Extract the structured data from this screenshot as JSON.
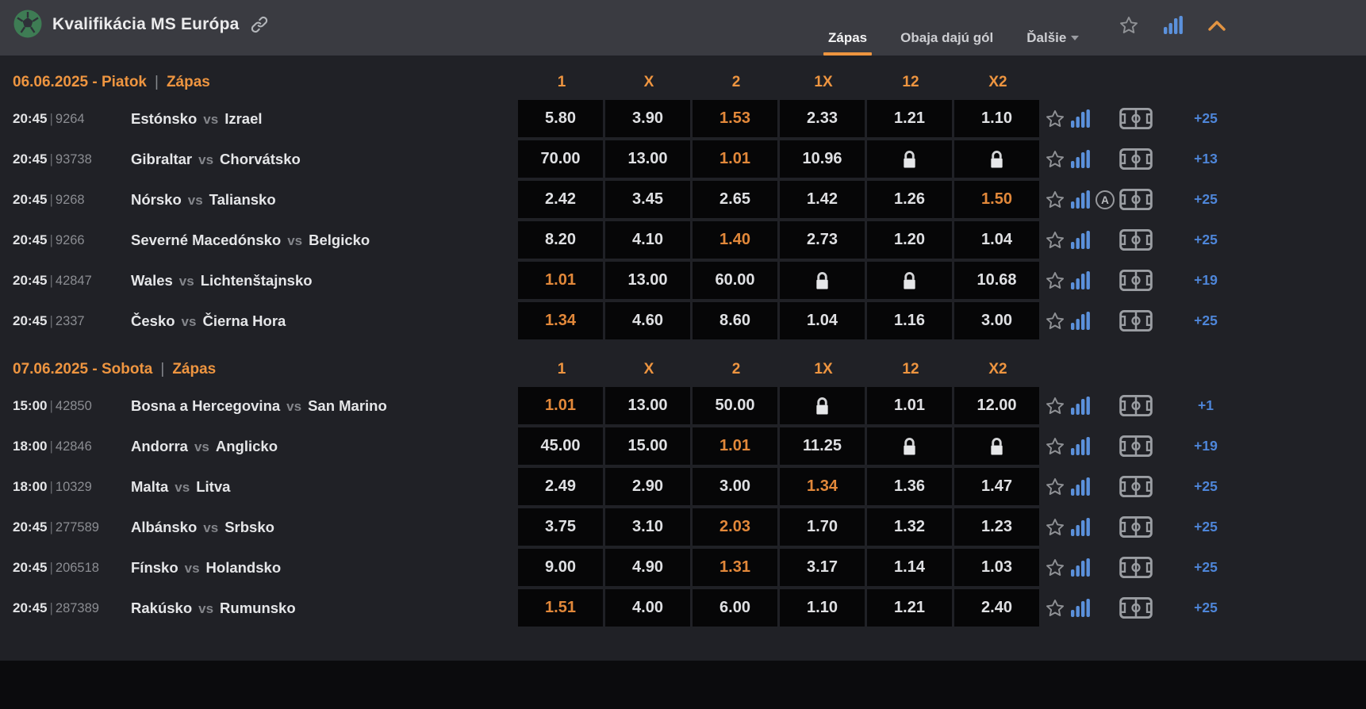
{
  "header": {
    "title": "Kvalifikácia MS Európa",
    "tabs": [
      {
        "label": "Zápas",
        "active": true,
        "dropdown": false
      },
      {
        "label": "Obaja dajú gól",
        "active": false,
        "dropdown": false
      },
      {
        "label": "Ďalšie",
        "active": false,
        "dropdown": true
      }
    ]
  },
  "ui": {
    "separator": "|",
    "vs_label": "vs"
  },
  "columns": [
    "1",
    "X",
    "2",
    "1X",
    "12",
    "X2"
  ],
  "sections": [
    {
      "date_label": "06.06.2025 - Piatok",
      "market_label": "Zápas",
      "rows": [
        {
          "time": "20:45",
          "id": "9264",
          "home": "Estónsko",
          "away": "Izrael",
          "odds": [
            {
              "v": "5.80"
            },
            {
              "v": "3.90"
            },
            {
              "v": "1.53",
              "hot": true
            },
            {
              "v": "2.33"
            },
            {
              "v": "1.21"
            },
            {
              "v": "1.10"
            }
          ],
          "more": "+25",
          "badge": ""
        },
        {
          "time": "20:45",
          "id": "93738",
          "home": "Gibraltar",
          "away": "Chorvátsko",
          "odds": [
            {
              "v": "70.00"
            },
            {
              "v": "13.00"
            },
            {
              "v": "1.01",
              "hot": true
            },
            {
              "v": "10.96"
            },
            {
              "locked": true
            },
            {
              "locked": true
            }
          ],
          "more": "+13",
          "badge": ""
        },
        {
          "time": "20:45",
          "id": "9268",
          "home": "Nórsko",
          "away": "Taliansko",
          "odds": [
            {
              "v": "2.42"
            },
            {
              "v": "3.45"
            },
            {
              "v": "2.65"
            },
            {
              "v": "1.42"
            },
            {
              "v": "1.26"
            },
            {
              "v": "1.50",
              "hot": true
            }
          ],
          "more": "+25",
          "badge": "A"
        },
        {
          "time": "20:45",
          "id": "9266",
          "home": "Severné Macedónsko",
          "away": "Belgicko",
          "odds": [
            {
              "v": "8.20"
            },
            {
              "v": "4.10"
            },
            {
              "v": "1.40",
              "hot": true
            },
            {
              "v": "2.73"
            },
            {
              "v": "1.20"
            },
            {
              "v": "1.04"
            }
          ],
          "more": "+25",
          "badge": ""
        },
        {
          "time": "20:45",
          "id": "42847",
          "home": "Wales",
          "away": "Lichtenštajnsko",
          "odds": [
            {
              "v": "1.01",
              "hot": true
            },
            {
              "v": "13.00"
            },
            {
              "v": "60.00"
            },
            {
              "locked": true
            },
            {
              "locked": true
            },
            {
              "v": "10.68"
            }
          ],
          "more": "+19",
          "badge": ""
        },
        {
          "time": "20:45",
          "id": "2337",
          "home": "Česko",
          "away": "Čierna Hora",
          "odds": [
            {
              "v": "1.34",
              "hot": true
            },
            {
              "v": "4.60"
            },
            {
              "v": "8.60"
            },
            {
              "v": "1.04"
            },
            {
              "v": "1.16"
            },
            {
              "v": "3.00"
            }
          ],
          "more": "+25",
          "badge": ""
        }
      ]
    },
    {
      "date_label": "07.06.2025 - Sobota",
      "market_label": "Zápas",
      "rows": [
        {
          "time": "15:00",
          "id": "42850",
          "home": "Bosna a Hercegovina",
          "away": "San Marino",
          "odds": [
            {
              "v": "1.01",
              "hot": true
            },
            {
              "v": "13.00"
            },
            {
              "v": "50.00"
            },
            {
              "locked": true
            },
            {
              "v": "1.01"
            },
            {
              "v": "12.00"
            }
          ],
          "more": "+1",
          "badge": ""
        },
        {
          "time": "18:00",
          "id": "42846",
          "home": "Andorra",
          "away": "Anglicko",
          "odds": [
            {
              "v": "45.00"
            },
            {
              "v": "15.00"
            },
            {
              "v": "1.01",
              "hot": true
            },
            {
              "v": "11.25"
            },
            {
              "locked": true
            },
            {
              "locked": true
            }
          ],
          "more": "+19",
          "badge": ""
        },
        {
          "time": "18:00",
          "id": "10329",
          "home": "Malta",
          "away": "Litva",
          "odds": [
            {
              "v": "2.49"
            },
            {
              "v": "2.90"
            },
            {
              "v": "3.00"
            },
            {
              "v": "1.34",
              "hot": true
            },
            {
              "v": "1.36"
            },
            {
              "v": "1.47"
            }
          ],
          "more": "+25",
          "badge": ""
        },
        {
          "time": "20:45",
          "id": "277589",
          "home": "Albánsko",
          "away": "Srbsko",
          "odds": [
            {
              "v": "3.75"
            },
            {
              "v": "3.10"
            },
            {
              "v": "2.03",
              "hot": true
            },
            {
              "v": "1.70"
            },
            {
              "v": "1.32"
            },
            {
              "v": "1.23"
            }
          ],
          "more": "+25",
          "badge": ""
        },
        {
          "time": "20:45",
          "id": "206518",
          "home": "Fínsko",
          "away": "Holandsko",
          "odds": [
            {
              "v": "9.00"
            },
            {
              "v": "4.90"
            },
            {
              "v": "1.31",
              "hot": true
            },
            {
              "v": "3.17"
            },
            {
              "v": "1.14"
            },
            {
              "v": "1.03"
            }
          ],
          "more": "+25",
          "badge": ""
        },
        {
          "time": "20:45",
          "id": "287389",
          "home": "Rakúsko",
          "away": "Rumunsko",
          "odds": [
            {
              "v": "1.51",
              "hot": true
            },
            {
              "v": "4.00"
            },
            {
              "v": "6.00"
            },
            {
              "v": "1.10"
            },
            {
              "v": "1.21"
            },
            {
              "v": "2.40"
            }
          ],
          "more": "+25",
          "badge": ""
        }
      ]
    }
  ],
  "colors": {
    "header_bg": "#3a3b41",
    "body_bg": "#202126",
    "cell_bg": "#060607",
    "accent_orange": "#ee9540",
    "odds_hot": "#e2883a",
    "link_blue": "#4e86d9"
  }
}
